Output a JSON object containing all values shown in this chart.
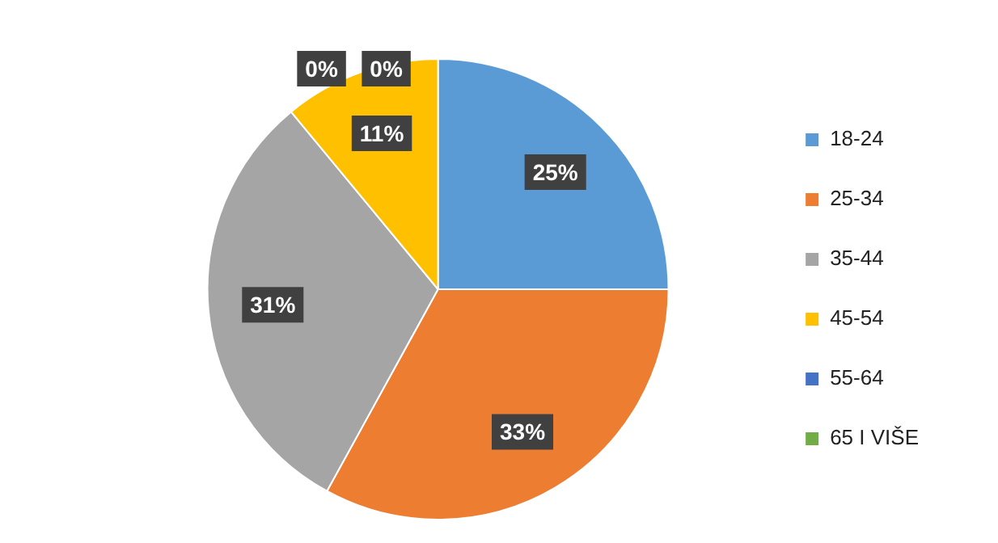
{
  "chart_data": {
    "type": "pie",
    "categories": [
      "18-24",
      "25-34",
      "35-44",
      "45-54",
      "55-64",
      "65 I VIŠE"
    ],
    "values": [
      25,
      33,
      31,
      11,
      0,
      0
    ],
    "colors": [
      "#5b9bd5",
      "#ed7d31",
      "#a5a5a5",
      "#ffc000",
      "#4472c4",
      "#70ad47"
    ],
    "value_labels": [
      "25%",
      "33%",
      "31%",
      "11%",
      "0%",
      "0%"
    ],
    "legend": "right"
  }
}
